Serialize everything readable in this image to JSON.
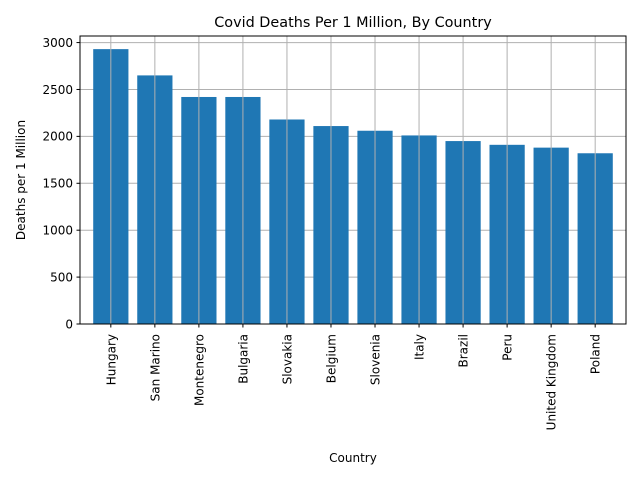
{
  "chart_data": {
    "type": "bar",
    "title": "Covid Deaths Per 1 Million, By Country",
    "xlabel": "Country",
    "ylabel": "Deaths per 1 Million",
    "categories": [
      "Hungary",
      "San Marino",
      "Montenegro",
      "Bulgaria",
      "Slovakia",
      "Belgium",
      "Slovenia",
      "Italy",
      "Brazil",
      "Peru",
      "United Kingdom",
      "Poland"
    ],
    "values": [
      2930,
      2650,
      2420,
      2420,
      2180,
      2110,
      2060,
      2010,
      1950,
      1910,
      1880,
      1820
    ],
    "ylim": [
      0,
      3070
    ],
    "yticks": [
      0,
      500,
      1000,
      1500,
      2000,
      2500,
      3000
    ],
    "grid": true,
    "bar_color": "#1f77b4",
    "grid_color": "#b0b0b0"
  }
}
